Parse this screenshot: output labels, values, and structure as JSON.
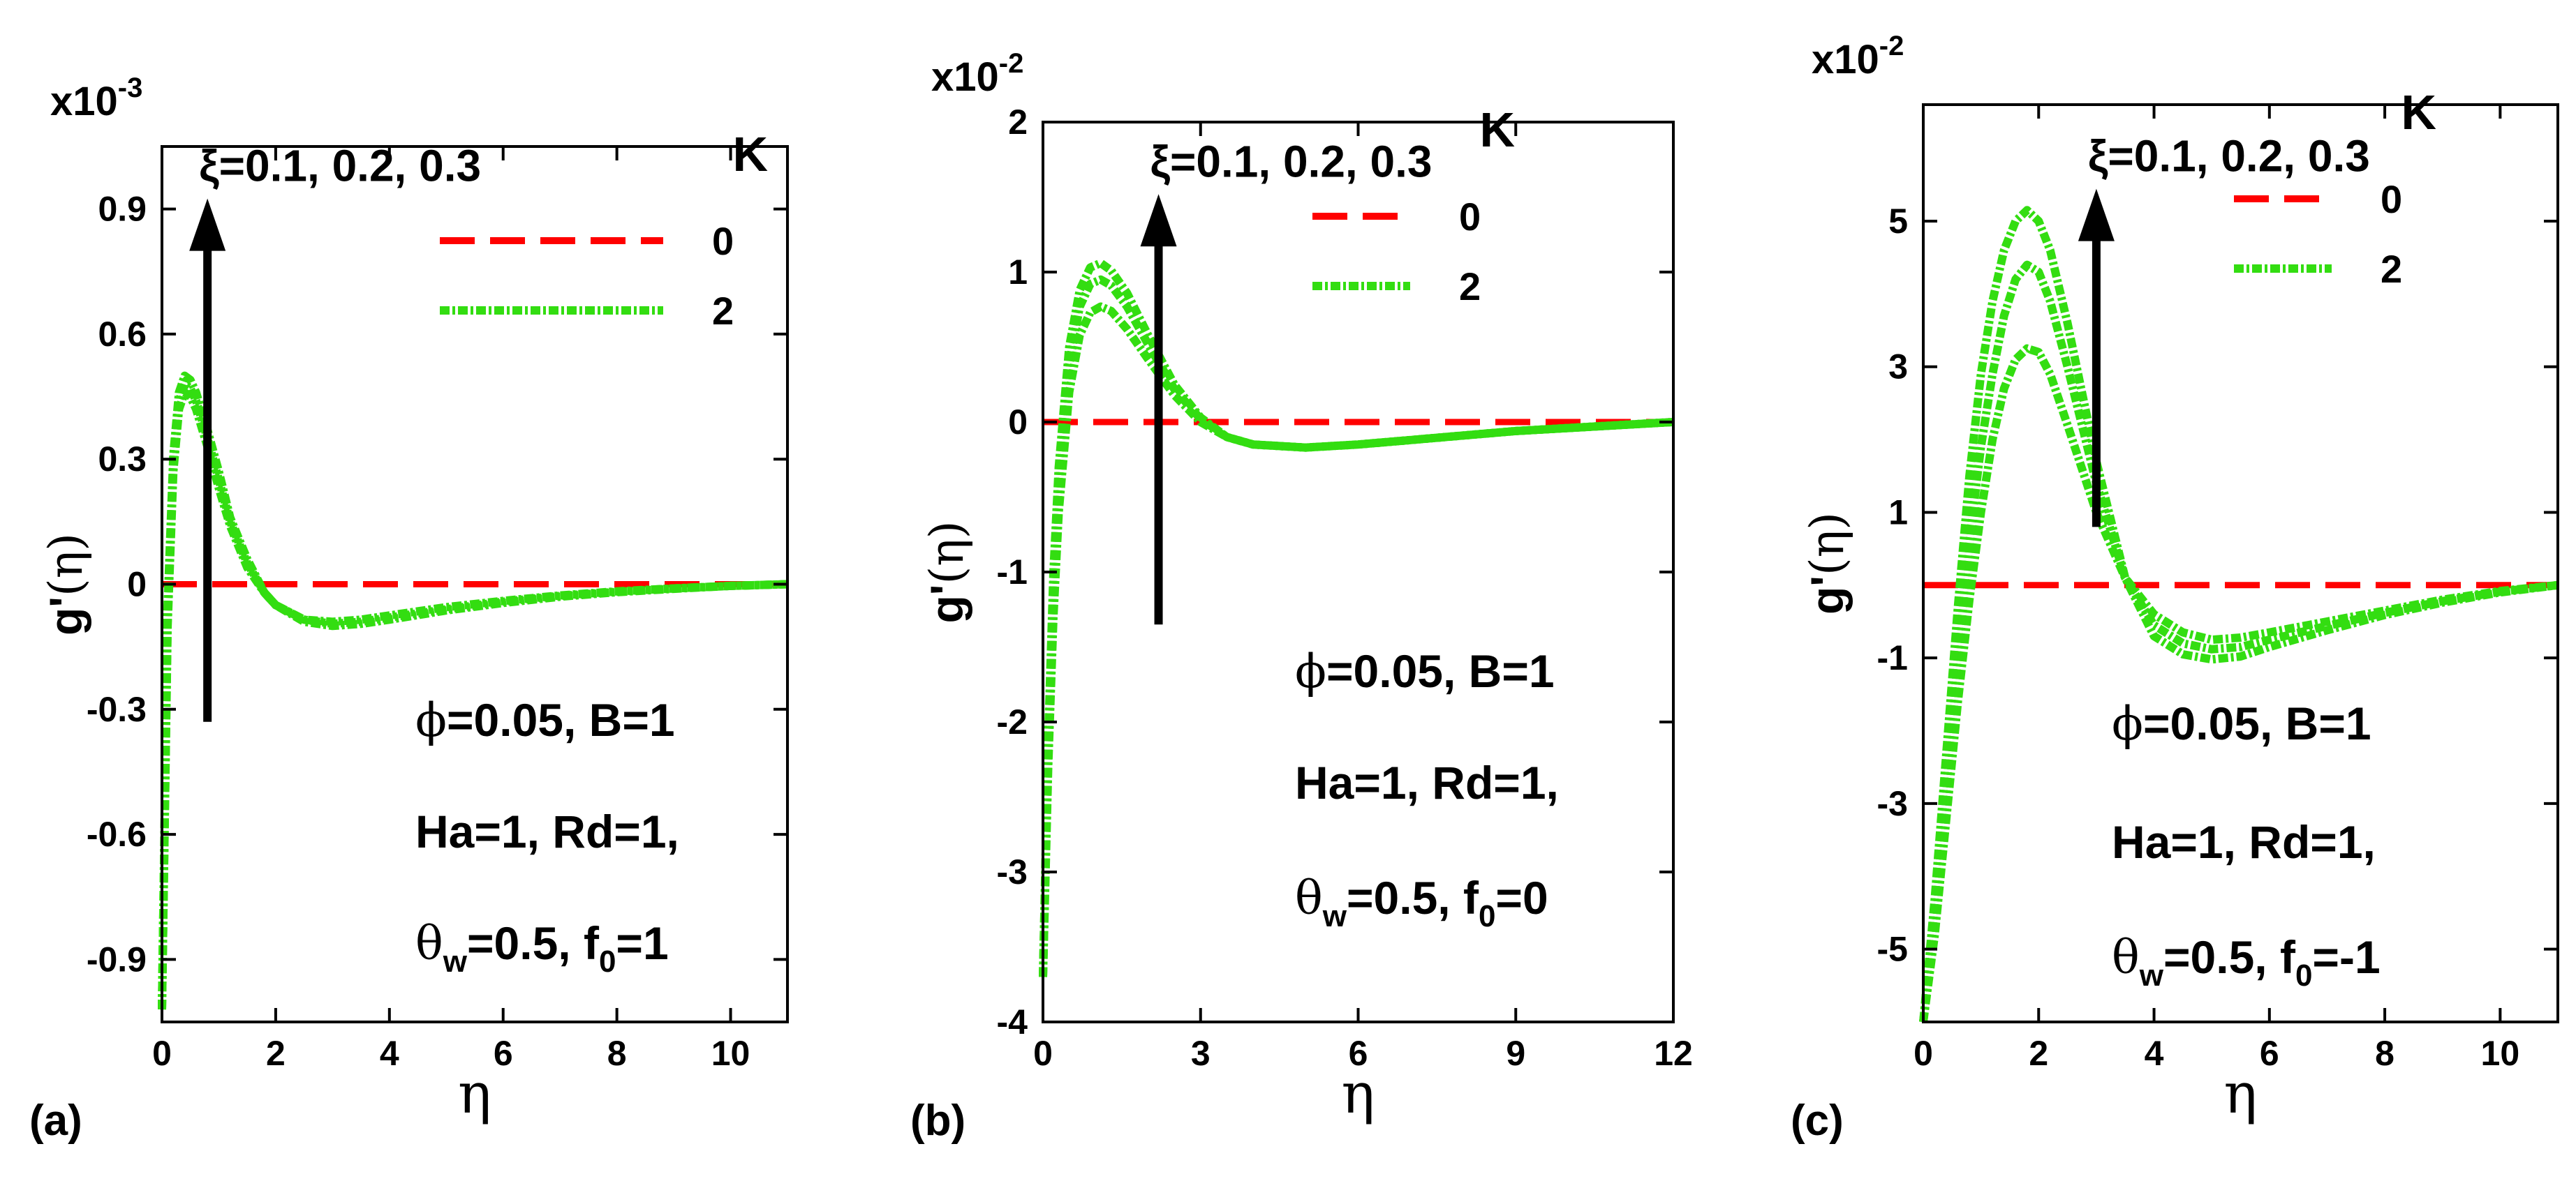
{
  "chart_data": [
    {
      "type": "line",
      "panel_label": "(a)",
      "xlabel": "η",
      "ylabel_main": "g'",
      "ylabel_arg": "(η)",
      "multiplier_base": "x10",
      "multiplier_exp": "-3",
      "xlim": [
        0,
        11
      ],
      "ylim": [
        -1.05,
        1.05
      ],
      "xticks": [
        0,
        2,
        4,
        6,
        8,
        10
      ],
      "xtick_labels": [
        "0",
        "2",
        "4",
        "6",
        "8",
        "10"
      ],
      "yticks": [
        -0.9,
        -0.6,
        -0.3,
        0,
        0.3,
        0.6,
        0.9
      ],
      "ytick_labels": [
        "-0.9",
        "-0.6",
        "-0.3",
        "0",
        "0.3",
        "0.6",
        "0.9"
      ],
      "arrow_label": "ξ=0.1, 0.2, 0.3",
      "arrow_x": 0.8,
      "arrow_from_y": -0.33,
      "arrow_to_y": 0.9,
      "legend_title": "K",
      "legend": [
        {
          "label": "0",
          "color": "#ff0000",
          "style": "dash"
        },
        {
          "label": "2",
          "color": "#33dd11",
          "style": "dashdot"
        }
      ],
      "annotations": [
        {
          "pre": "ϕ",
          "main": "=0.05, B=1"
        },
        {
          "pre": "",
          "main": "Ha=1, Rd=1,"
        },
        {
          "pre": "θ",
          "sub1": "w",
          "mid": "=0.5, f",
          "sub2": "0",
          "post": "=1"
        }
      ],
      "series": [
        {
          "name": "K=0",
          "color": "#ff0000",
          "x": [
            0,
            11
          ],
          "y": [
            0,
            0
          ]
        },
        {
          "name": "K=2, ξ=0.1",
          "color": "#33dd11",
          "x": [
            0,
            0.1,
            0.2,
            0.3,
            0.4,
            0.5,
            0.6,
            0.8,
            1.0,
            1.2,
            1.5,
            1.8,
            2.0,
            2.5,
            3.0,
            3.5,
            4.0,
            5.0,
            6.0,
            7.0,
            8.0,
            9.0,
            10.0,
            11.0
          ],
          "y": [
            -1.02,
            -0.1,
            0.27,
            0.42,
            0.46,
            0.45,
            0.42,
            0.33,
            0.23,
            0.14,
            0.04,
            -0.02,
            -0.05,
            -0.085,
            -0.09,
            -0.085,
            -0.075,
            -0.055,
            -0.04,
            -0.027,
            -0.017,
            -0.01,
            -0.004,
            0
          ]
        },
        {
          "name": "K=2, ξ=0.2",
          "color": "#33dd11",
          "x": [
            0,
            0.1,
            0.2,
            0.3,
            0.4,
            0.5,
            0.6,
            0.8,
            1.0,
            1.2,
            1.5,
            1.8,
            2.0,
            2.5,
            3.0,
            3.5,
            4.0,
            5.0,
            6.0,
            7.0,
            8.0,
            9.0,
            10.0,
            11.0
          ],
          "y": [
            -1.02,
            -0.08,
            0.29,
            0.44,
            0.48,
            0.47,
            0.44,
            0.35,
            0.25,
            0.15,
            0.05,
            -0.02,
            -0.05,
            -0.085,
            -0.095,
            -0.09,
            -0.08,
            -0.06,
            -0.042,
            -0.028,
            -0.018,
            -0.01,
            -0.004,
            0
          ]
        },
        {
          "name": "K=2, ξ=0.3",
          "color": "#33dd11",
          "x": [
            0,
            0.1,
            0.2,
            0.3,
            0.4,
            0.5,
            0.6,
            0.8,
            1.0,
            1.2,
            1.5,
            1.8,
            2.0,
            2.5,
            3.0,
            3.5,
            4.0,
            5.0,
            6.0,
            7.0,
            8.0,
            9.0,
            10.0,
            11.0
          ],
          "y": [
            -1.02,
            -0.05,
            0.31,
            0.46,
            0.5,
            0.49,
            0.46,
            0.37,
            0.27,
            0.16,
            0.06,
            -0.02,
            -0.05,
            -0.09,
            -0.1,
            -0.095,
            -0.085,
            -0.063,
            -0.045,
            -0.03,
            -0.019,
            -0.011,
            -0.004,
            0
          ]
        }
      ]
    },
    {
      "type": "line",
      "panel_label": "(b)",
      "xlabel": "η",
      "ylabel_main": "g'",
      "ylabel_arg": "(η)",
      "multiplier_base": "x10",
      "multiplier_exp": "-2",
      "xlim": [
        0,
        12
      ],
      "ylim": [
        -4,
        2
      ],
      "xticks": [
        0,
        3,
        6,
        9,
        12
      ],
      "xtick_labels": [
        "0",
        "3",
        "6",
        "9",
        "12"
      ],
      "yticks": [
        -4,
        -3,
        -2,
        -1,
        0,
        1,
        2
      ],
      "ytick_labels": [
        "-4",
        "-3",
        "-2",
        "-1",
        "0",
        "1",
        "2"
      ],
      "arrow_label": "ξ=0.1, 0.2, 0.3",
      "arrow_x": 2.2,
      "arrow_from_y": -1.35,
      "arrow_to_y": 1.45,
      "legend_title": "K",
      "legend": [
        {
          "label": "0",
          "color": "#ff0000",
          "style": "dash"
        },
        {
          "label": "2",
          "color": "#33dd11",
          "style": "dashdot"
        }
      ],
      "annotations": [
        {
          "pre": "ϕ",
          "main": "=0.05, B=1"
        },
        {
          "pre": "",
          "main": "Ha=1, Rd=1,"
        },
        {
          "pre": "θ",
          "sub1": "w",
          "mid": "=0.5, f",
          "sub2": "0",
          "post": "=0"
        }
      ],
      "series": [
        {
          "name": "K=0",
          "color": "#ff0000",
          "x": [
            0,
            12
          ],
          "y": [
            0,
            0
          ]
        },
        {
          "name": "K=2, ξ=0.1",
          "color": "#33dd11",
          "x": [
            0,
            0.1,
            0.2,
            0.3,
            0.5,
            0.7,
            0.9,
            1.1,
            1.3,
            1.6,
            2.0,
            2.5,
            3.0,
            3.5,
            4.0,
            5.0,
            6.0,
            7.0,
            8.0,
            9.0,
            10.0,
            11.0,
            12.0
          ],
          "y": [
            -3.7,
            -2.3,
            -1.3,
            -0.6,
            0.2,
            0.58,
            0.73,
            0.77,
            0.74,
            0.62,
            0.42,
            0.18,
            0.0,
            -0.1,
            -0.15,
            -0.17,
            -0.15,
            -0.12,
            -0.09,
            -0.06,
            -0.04,
            -0.02,
            0
          ]
        },
        {
          "name": "K=2, ξ=0.2",
          "color": "#33dd11",
          "x": [
            0,
            0.1,
            0.2,
            0.3,
            0.5,
            0.7,
            0.9,
            1.1,
            1.3,
            1.6,
            2.0,
            2.5,
            3.0,
            3.5,
            4.0,
            5.0,
            6.0,
            7.0,
            8.0,
            9.0,
            10.0,
            11.0,
            12.0
          ],
          "y": [
            -3.7,
            -2.2,
            -1.15,
            -0.45,
            0.38,
            0.77,
            0.92,
            0.95,
            0.91,
            0.77,
            0.52,
            0.22,
            0.02,
            -0.1,
            -0.15,
            -0.17,
            -0.15,
            -0.12,
            -0.09,
            -0.06,
            -0.04,
            -0.02,
            0
          ]
        },
        {
          "name": "K=2, ξ=0.3",
          "color": "#33dd11",
          "x": [
            0,
            0.1,
            0.2,
            0.3,
            0.5,
            0.7,
            0.9,
            1.1,
            1.3,
            1.6,
            2.0,
            2.5,
            3.0,
            3.5,
            4.0,
            5.0,
            6.0,
            7.0,
            8.0,
            9.0,
            10.0,
            11.0,
            12.0
          ],
          "y": [
            -3.7,
            -2.1,
            -1.0,
            -0.3,
            0.5,
            0.88,
            1.03,
            1.06,
            1.01,
            0.86,
            0.58,
            0.25,
            0.03,
            -0.1,
            -0.15,
            -0.17,
            -0.15,
            -0.12,
            -0.09,
            -0.06,
            -0.04,
            -0.02,
            0
          ]
        }
      ]
    },
    {
      "type": "line",
      "panel_label": "(c)",
      "xlabel": "η",
      "ylabel_main": "g'",
      "ylabel_arg": "(η)",
      "multiplier_base": "x10",
      "multiplier_exp": "-2",
      "xlim": [
        0,
        11
      ],
      "ylim": [
        -6,
        6.6
      ],
      "xticks": [
        0,
        2,
        4,
        6,
        8,
        10
      ],
      "xtick_labels": [
        "0",
        "2",
        "4",
        "6",
        "8",
        "10"
      ],
      "yticks": [
        -5,
        -3,
        -1,
        1,
        3,
        5
      ],
      "ytick_labels": [
        "-5",
        "-3",
        "-1",
        "1",
        "3",
        "5"
      ],
      "arrow_label": "ξ=0.1, 0.2, 0.3",
      "arrow_x": 3.0,
      "arrow_from_y": 0.8,
      "arrow_to_y": 5.3,
      "legend_title": "K",
      "legend": [
        {
          "label": "0",
          "color": "#ff0000",
          "style": "dash"
        },
        {
          "label": "2",
          "color": "#33dd11",
          "style": "dashdot"
        }
      ],
      "annotations": [
        {
          "pre": "ϕ",
          "main": "=0.05, B=1"
        },
        {
          "pre": "",
          "main": "Ha=1, Rd=1,"
        },
        {
          "pre": "θ",
          "sub1": "w",
          "mid": "=0.5, f",
          "sub2": "0",
          "post": "=-1"
        }
      ],
      "series": [
        {
          "name": "K=0",
          "color": "#ff0000",
          "x": [
            0,
            11
          ],
          "y": [
            0,
            0
          ]
        },
        {
          "name": "K=2, ξ=0.1",
          "color": "#33dd11",
          "x": [
            0,
            0.2,
            0.4,
            0.6,
            0.8,
            1.0,
            1.2,
            1.4,
            1.6,
            1.8,
            2.0,
            2.2,
            2.5,
            3.0,
            3.5,
            4.0,
            4.5,
            5.0,
            5.5,
            6.0,
            7.0,
            8.0,
            9.0,
            10.0,
            11.0
          ],
          "y": [
            -6.0,
            -4.8,
            -3.2,
            -1.6,
            -0.2,
            1.0,
            2.0,
            2.7,
            3.1,
            3.25,
            3.2,
            2.9,
            2.2,
            1.0,
            0.1,
            -0.4,
            -0.65,
            -0.75,
            -0.72,
            -0.65,
            -0.5,
            -0.35,
            -0.2,
            -0.08,
            0
          ]
        },
        {
          "name": "K=2, ξ=0.2",
          "color": "#33dd11",
          "x": [
            0,
            0.2,
            0.4,
            0.6,
            0.8,
            1.0,
            1.2,
            1.4,
            1.6,
            1.8,
            2.0,
            2.2,
            2.5,
            3.0,
            3.5,
            4.0,
            4.5,
            5.0,
            5.5,
            6.0,
            7.0,
            8.0,
            9.0,
            10.0,
            11.0
          ],
          "y": [
            -6.0,
            -4.6,
            -2.8,
            -1.0,
            0.6,
            1.9,
            2.9,
            3.7,
            4.2,
            4.4,
            4.3,
            3.9,
            3.0,
            1.4,
            0.1,
            -0.55,
            -0.8,
            -0.88,
            -0.85,
            -0.75,
            -0.56,
            -0.38,
            -0.22,
            -0.09,
            0
          ]
        },
        {
          "name": "K=2, ξ=0.3",
          "color": "#33dd11",
          "x": [
            0,
            0.2,
            0.4,
            0.6,
            0.8,
            1.0,
            1.2,
            1.4,
            1.6,
            1.8,
            2.0,
            2.2,
            2.5,
            3.0,
            3.5,
            4.0,
            4.5,
            5.0,
            5.5,
            6.0,
            7.0,
            8.0,
            9.0,
            10.0,
            11.0
          ],
          "y": [
            -6.0,
            -4.3,
            -2.3,
            -0.3,
            1.5,
            2.9,
            3.9,
            4.6,
            5.0,
            5.15,
            5.0,
            4.6,
            3.6,
            1.7,
            0.1,
            -0.7,
            -0.95,
            -1.02,
            -0.98,
            -0.85,
            -0.62,
            -0.41,
            -0.24,
            -0.1,
            0
          ]
        }
      ]
    }
  ]
}
